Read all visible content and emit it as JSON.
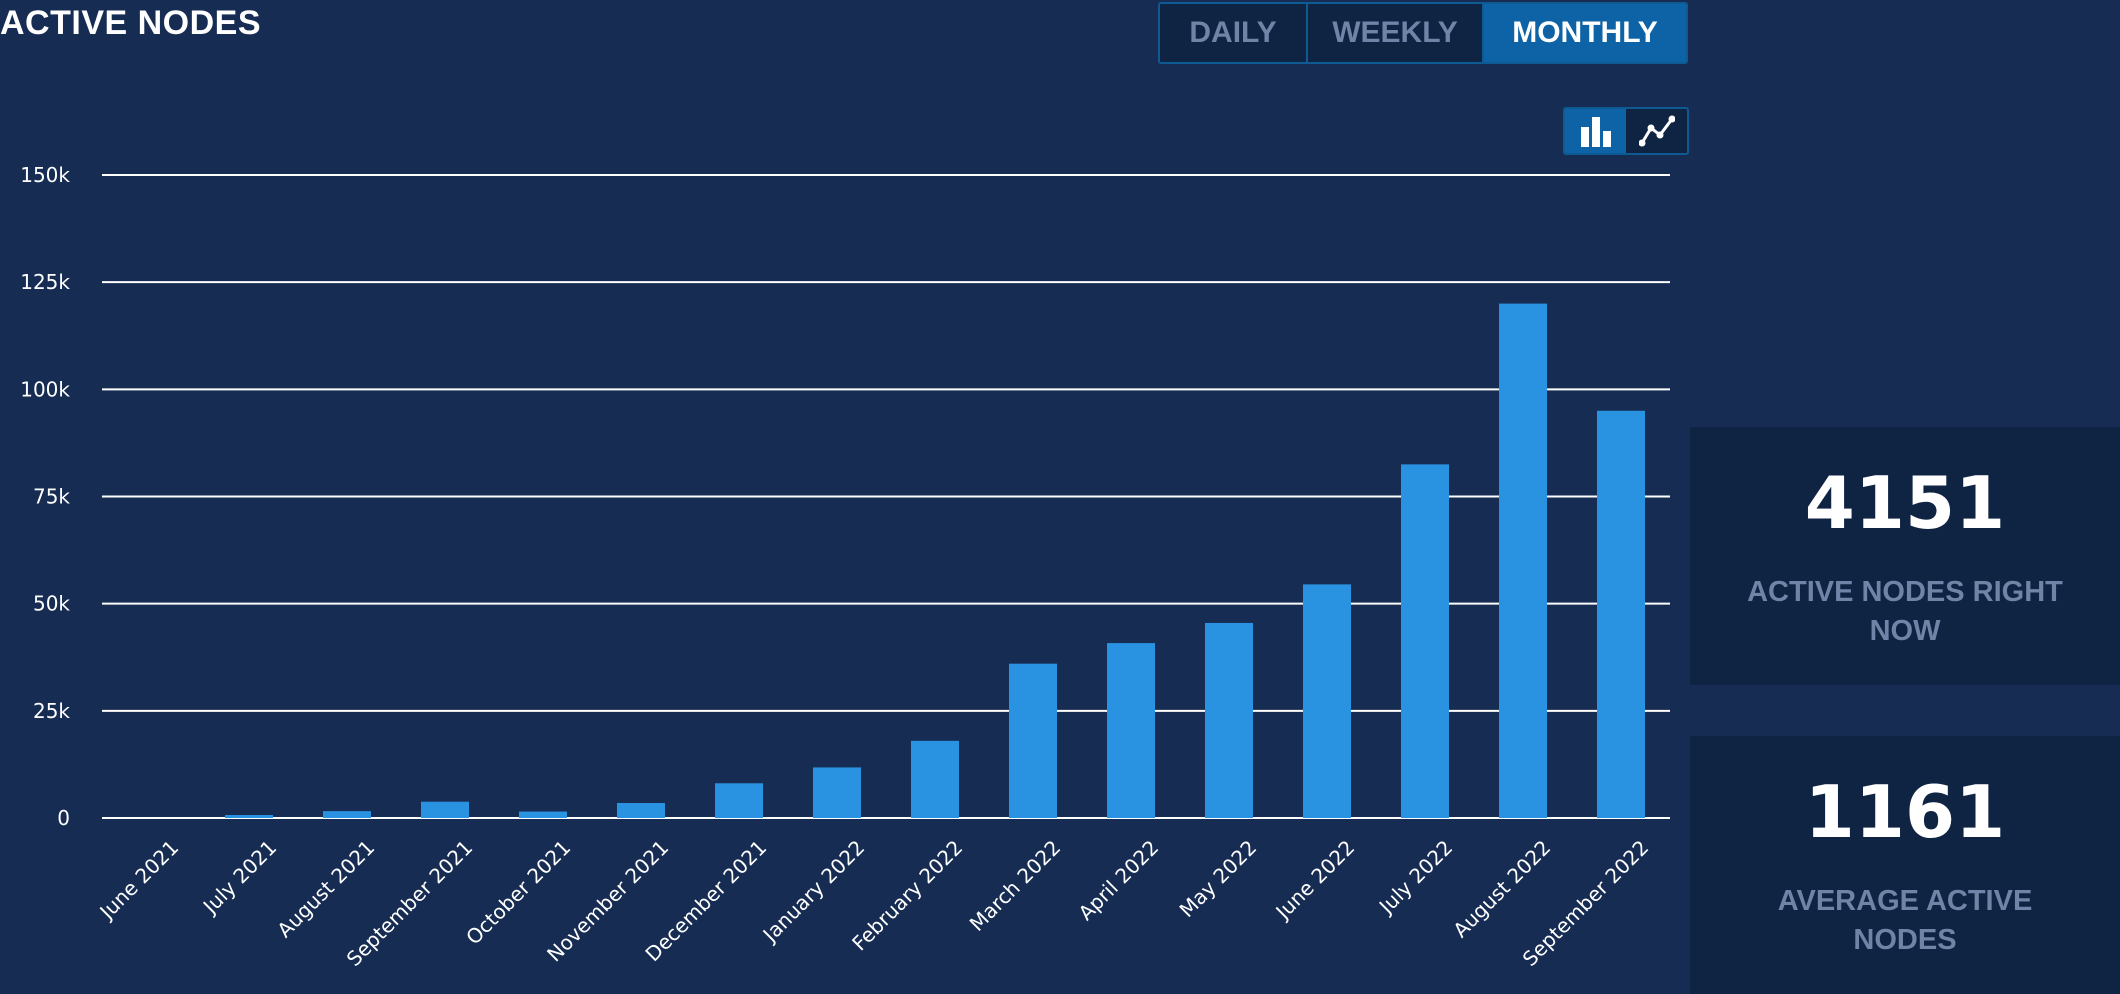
{
  "title": "ACTIVE NODES",
  "period_tabs": [
    {
      "label": "DAILY",
      "active": false
    },
    {
      "label": "WEEKLY",
      "active": false
    },
    {
      "label": "MONTHLY",
      "active": true
    }
  ],
  "chart_type_toggle": {
    "active": "bar",
    "options": [
      "bar-chart-icon",
      "line-chart-icon"
    ]
  },
  "colors": {
    "background": "#162c53",
    "bar": "#2a93e1",
    "accent": "#0d63a6",
    "panel": "#0f2343",
    "muted_text": "#6f84a6"
  },
  "stats": [
    {
      "value": "4151",
      "label": "ACTIVE NODES RIGHT NOW"
    },
    {
      "value": "1161",
      "label": "AVERAGE ACTIVE NODES"
    }
  ],
  "chart_data": {
    "type": "bar",
    "categories": [
      "June 2021",
      "July 2021",
      "August 2021",
      "September 2021",
      "October 2021",
      "November 2021",
      "December 2021",
      "January 2022",
      "February 2022",
      "March 2022",
      "April 2022",
      "May 2022",
      "June 2022",
      "July 2022",
      "August 2022",
      "September 2022"
    ],
    "values": [
      0,
      700,
      1600,
      3800,
      1500,
      3500,
      8100,
      11800,
      18000,
      36000,
      40800,
      45500,
      54500,
      82500,
      120000,
      95000
    ],
    "yticks": [
      "0",
      "25k",
      "50k",
      "75k",
      "100k",
      "125k",
      "150k"
    ],
    "ytick_values": [
      0,
      25000,
      50000,
      75000,
      100000,
      125000,
      150000
    ],
    "ylim": [
      0,
      150000
    ],
    "grid": true,
    "legend": "none"
  }
}
